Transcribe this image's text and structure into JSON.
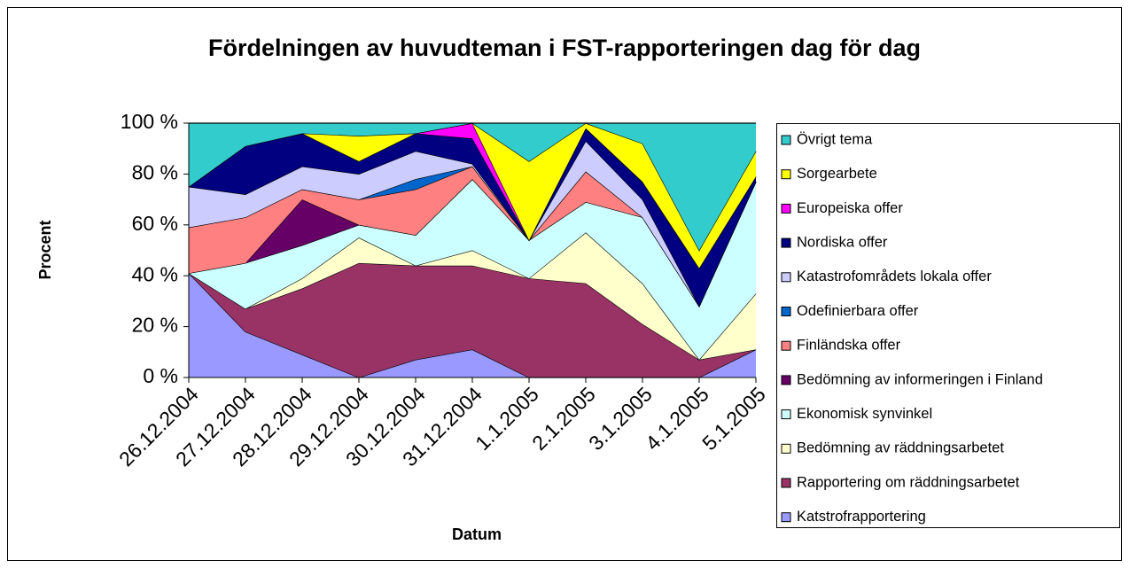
{
  "chart_data": {
    "type": "stacked_area",
    "title": "Fördelningen av huvudteman i FST-rapporteringen dag för dag",
    "xlabel": "Datum",
    "ylabel": "Procent",
    "categories": [
      "26.12.2004",
      "27.12.2004",
      "28.12.2004",
      "29.12.2004",
      "30.12.2004",
      "31.12.2004",
      "1.1.2005",
      "2.1.2005",
      "3.1.2005",
      "4.1.2005",
      "5.1.2005"
    ],
    "ylim": [
      0,
      100
    ],
    "yticks": [
      {
        "value": 0,
        "label": "0 %"
      },
      {
        "value": 20,
        "label": "20 %"
      },
      {
        "value": 40,
        "label": "40 %"
      },
      {
        "value": 60,
        "label": "60 %"
      },
      {
        "value": 80,
        "label": "80 %"
      },
      {
        "value": 100,
        "label": "100 %"
      }
    ],
    "legend": "right",
    "series": [
      {
        "name": "Katstrofrapportering",
        "color": "#9999ff",
        "values": [
          41,
          18,
          9,
          0,
          7,
          11,
          0,
          0,
          0,
          0,
          11
        ]
      },
      {
        "name": "Rapportering om räddningsarbetet",
        "color": "#993366",
        "values": [
          0,
          9,
          26,
          45,
          37,
          33,
          39,
          37,
          21,
          7,
          0
        ]
      },
      {
        "name": "Bedömning av räddningsarbetet",
        "color": "#ffffcc",
        "values": [
          0,
          0,
          4,
          10,
          0,
          6,
          0,
          20,
          16,
          0,
          22
        ]
      },
      {
        "name": "Ekonomisk synvinkel",
        "color": "#ccffff",
        "values": [
          0,
          18,
          13,
          5,
          12,
          28,
          15,
          12,
          26,
          21,
          44
        ]
      },
      {
        "name": "Bedömning av informeringen i Finland",
        "color": "#660066",
        "values": [
          0,
          0,
          18,
          0,
          0,
          0,
          0,
          0,
          0,
          0,
          0
        ]
      },
      {
        "name": "Finländska offer",
        "color": "#ff8080",
        "values": [
          18,
          18,
          4,
          10,
          18,
          5,
          0,
          12,
          0,
          0,
          0
        ]
      },
      {
        "name": "Odefinierbara offer",
        "color": "#0066cc",
        "values": [
          0,
          0,
          0,
          0,
          4,
          0,
          0,
          0,
          0,
          0,
          0
        ]
      },
      {
        "name": "Katastrofområdets lokala offer",
        "color": "#ccccff",
        "values": [
          16,
          9,
          9,
          10,
          11,
          1,
          0,
          12,
          7,
          0,
          0
        ]
      },
      {
        "name": "Nordiska offer",
        "color": "#000080",
        "values": [
          0,
          19,
          13,
          5,
          7,
          10,
          0,
          5,
          7,
          15,
          2
        ]
      },
      {
        "name": "Europeiska offer",
        "color": "#ff00ff",
        "values": [
          0,
          0,
          0,
          0,
          0,
          6,
          0,
          0,
          0,
          0,
          0
        ]
      },
      {
        "name": "Sorgearbete",
        "color": "#ffff00",
        "values": [
          0,
          0,
          0,
          10,
          0,
          0,
          31,
          2,
          15,
          7,
          10
        ]
      },
      {
        "name": "Övrigt tema",
        "color": "#33cccc",
        "values": [
          25,
          9,
          4,
          5,
          4,
          0,
          15,
          0,
          8,
          50,
          11
        ]
      }
    ]
  }
}
